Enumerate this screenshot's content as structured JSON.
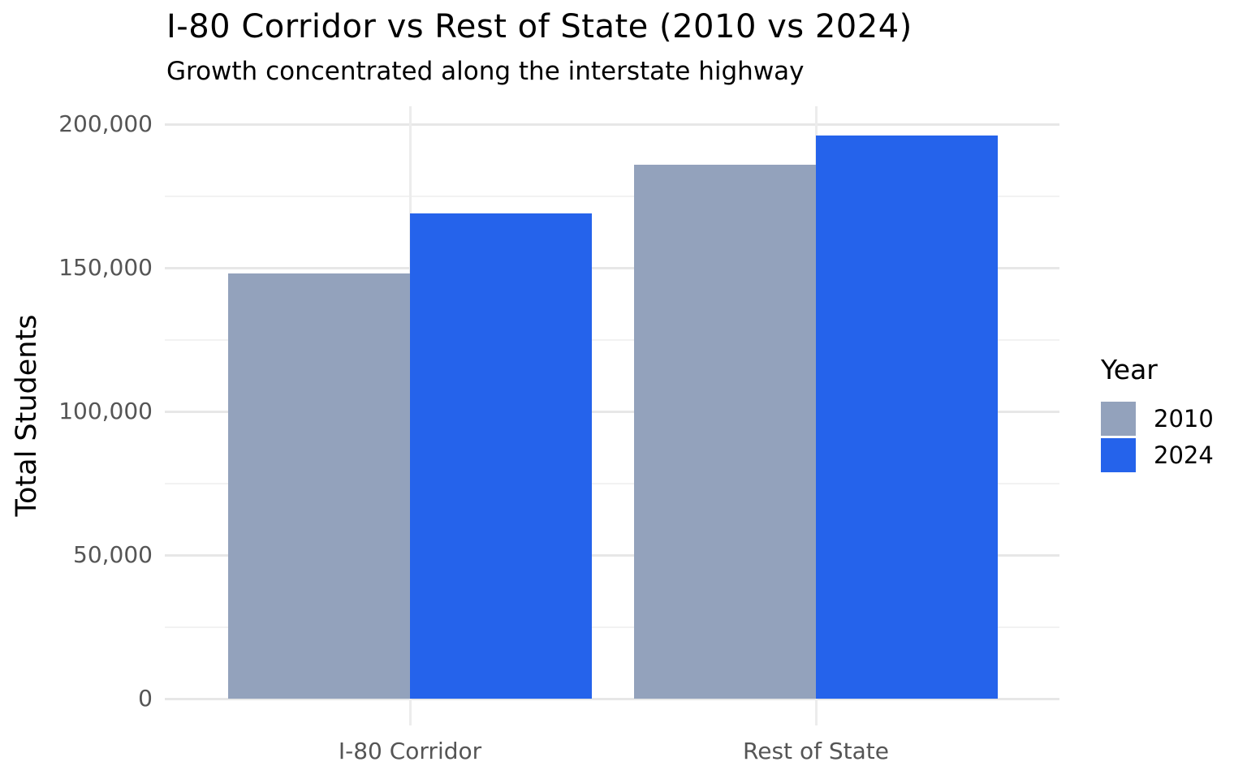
{
  "chart_data": {
    "type": "bar",
    "title": "I-80 Corridor vs Rest of State (2010 vs 2024)",
    "subtitle": "Growth concentrated along the interstate highway",
    "categories": [
      "I-80 Corridor",
      "Rest of State"
    ],
    "series": [
      {
        "name": "2010",
        "color": "#93A2BC",
        "values": [
          148000,
          186000
        ]
      },
      {
        "name": "2024",
        "color": "#2563EB",
        "values": [
          169000,
          196000
        ]
      }
    ],
    "xlabel": "",
    "ylabel": "Total Students",
    "ylim": [
      0,
      200000
    ],
    "yticks": [
      0,
      50000,
      100000,
      150000,
      200000
    ],
    "ytick_labels": [
      "0",
      "50,000",
      "100,000",
      "150,000",
      "200,000"
    ],
    "yticks_minor": [
      25000,
      75000,
      125000,
      175000
    ],
    "legend": {
      "title": "Year",
      "position": "right"
    },
    "grid": "horizontal major and minor gridlines, vertical gridline at each category center"
  },
  "colors": {
    "background": "#FFFFFF",
    "grid_major": "#E7E7E7",
    "grid_minor": "#F2F2F2",
    "grid_vertical": "#ECECEC",
    "axis_text": "#555555",
    "title_text": "#000000"
  }
}
